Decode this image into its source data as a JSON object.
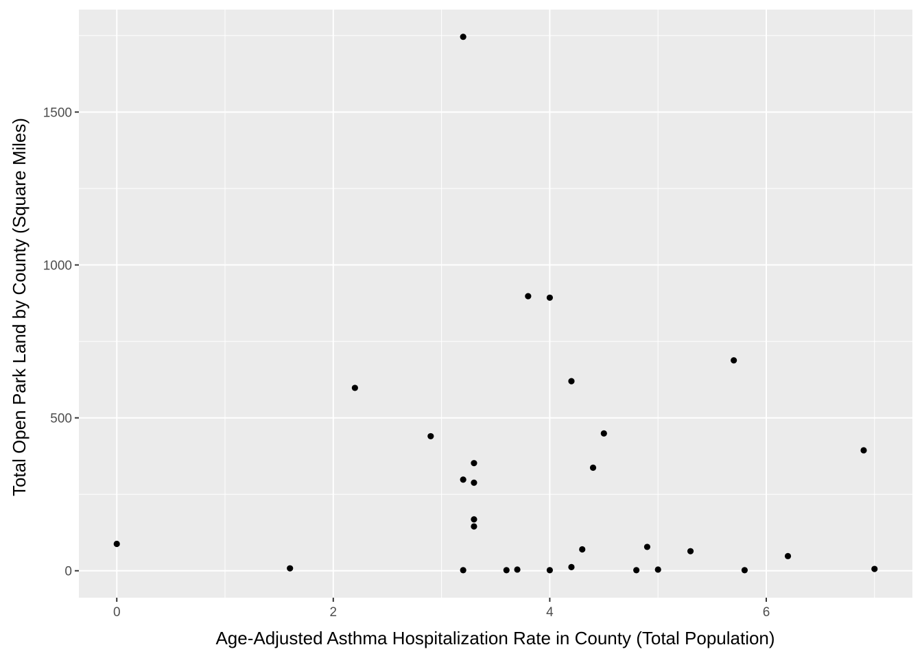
{
  "chart_data": {
    "type": "scatter",
    "title": "",
    "xlabel": "Age-Adjusted Asthma Hospitalization Rate in County (Total Population)",
    "ylabel": "Total Open Park Land by County (Square Miles)",
    "xlim": [
      -0.35,
      7.35
    ],
    "ylim": [
      -88,
      1835
    ],
    "x_ticks": [
      0,
      2,
      4,
      6
    ],
    "y_ticks": [
      0,
      500,
      1000,
      1500
    ],
    "x_tick_labels": [
      "0",
      "2",
      "4",
      "6"
    ],
    "y_tick_labels": [
      "0",
      "500",
      "1000",
      "1500"
    ],
    "grid": true,
    "colors": {
      "panel_background": "#ebebeb",
      "grid_line": "#ffffff",
      "point": "#000000",
      "tick_label": "#4d4d4d",
      "tick_mark": "#333333"
    },
    "points": [
      {
        "x": 0.0,
        "y": 88
      },
      {
        "x": 1.6,
        "y": 8
      },
      {
        "x": 2.2,
        "y": 598
      },
      {
        "x": 2.9,
        "y": 440
      },
      {
        "x": 3.2,
        "y": 1746
      },
      {
        "x": 3.2,
        "y": 298
      },
      {
        "x": 3.2,
        "y": 2
      },
      {
        "x": 3.3,
        "y": 352
      },
      {
        "x": 3.3,
        "y": 288
      },
      {
        "x": 3.3,
        "y": 168
      },
      {
        "x": 3.3,
        "y": 145
      },
      {
        "x": 3.6,
        "y": 2
      },
      {
        "x": 3.7,
        "y": 4
      },
      {
        "x": 3.8,
        "y": 898
      },
      {
        "x": 4.0,
        "y": 893
      },
      {
        "x": 4.0,
        "y": 2
      },
      {
        "x": 4.2,
        "y": 620
      },
      {
        "x": 4.2,
        "y": 12
      },
      {
        "x": 4.3,
        "y": 70
      },
      {
        "x": 4.4,
        "y": 337
      },
      {
        "x": 4.5,
        "y": 449
      },
      {
        "x": 4.8,
        "y": 2
      },
      {
        "x": 4.9,
        "y": 78
      },
      {
        "x": 5.0,
        "y": 4
      },
      {
        "x": 5.3,
        "y": 64
      },
      {
        "x": 5.7,
        "y": 688
      },
      {
        "x": 5.8,
        "y": 2
      },
      {
        "x": 6.2,
        "y": 48
      },
      {
        "x": 6.9,
        "y": 394
      },
      {
        "x": 7.0,
        "y": 6
      }
    ]
  }
}
